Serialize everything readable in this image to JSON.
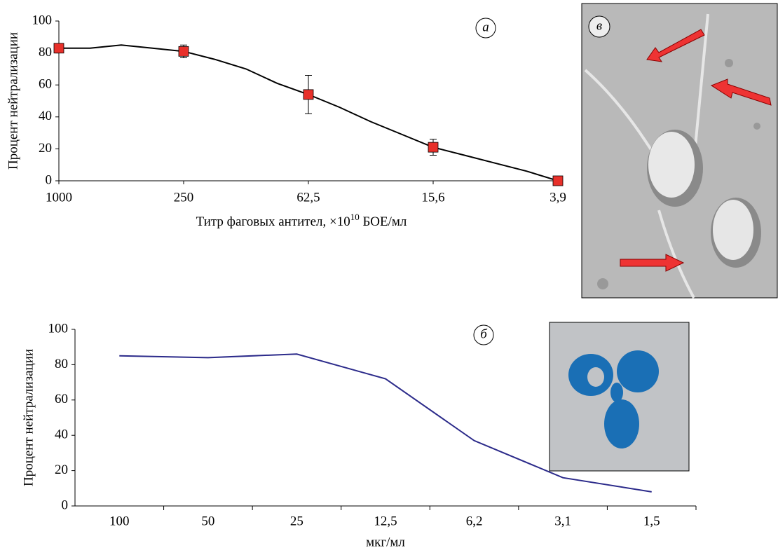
{
  "chart_data": [
    {
      "type": "line",
      "annotation": "а",
      "ylabel": "Процент нейтрализации",
      "xlabel": [
        "Титр фаговых антител, ×10",
        "10",
        " БОЕ/мл"
      ],
      "categories": [
        "1000",
        null,
        null,
        null,
        "250",
        null,
        null,
        null,
        "62,5",
        null,
        null,
        null,
        "15,6",
        null,
        null,
        null,
        "3,9"
      ],
      "series": [
        {
          "color": "#000000",
          "values": [
            83,
            83,
            85,
            83,
            81,
            76,
            70,
            61,
            54,
            46,
            37,
            29,
            21,
            16,
            11,
            6,
            0
          ]
        },
        {
          "color": "#e8302a",
          "marker": "square",
          "values": [
            83,
            null,
            null,
            null,
            81,
            null,
            null,
            null,
            54,
            null,
            null,
            null,
            21,
            null,
            null,
            null,
            0
          ],
          "errors": [
            1,
            null,
            null,
            null,
            4,
            null,
            null,
            null,
            12,
            null,
            null,
            null,
            5,
            null,
            null,
            null,
            null
          ]
        }
      ],
      "ylim": [
        0,
        100
      ],
      "yticks": [
        0,
        20,
        40,
        60,
        80,
        100
      ]
    },
    {
      "type": "line",
      "annotation": "б",
      "ylabel": "Процент нейтрализации",
      "xlabel": "мкг/мл",
      "categories": [
        "100",
        "50",
        "25",
        "12,5",
        "6,2",
        "3,1",
        "1,5"
      ],
      "series": [
        {
          "color": "#2b2a8a",
          "values": [
            85,
            84,
            86,
            72,
            37,
            16,
            8
          ]
        }
      ],
      "ylim": [
        0,
        100
      ],
      "yticks": [
        0,
        20,
        40,
        60,
        80,
        100
      ]
    }
  ],
  "photo_label": "в"
}
